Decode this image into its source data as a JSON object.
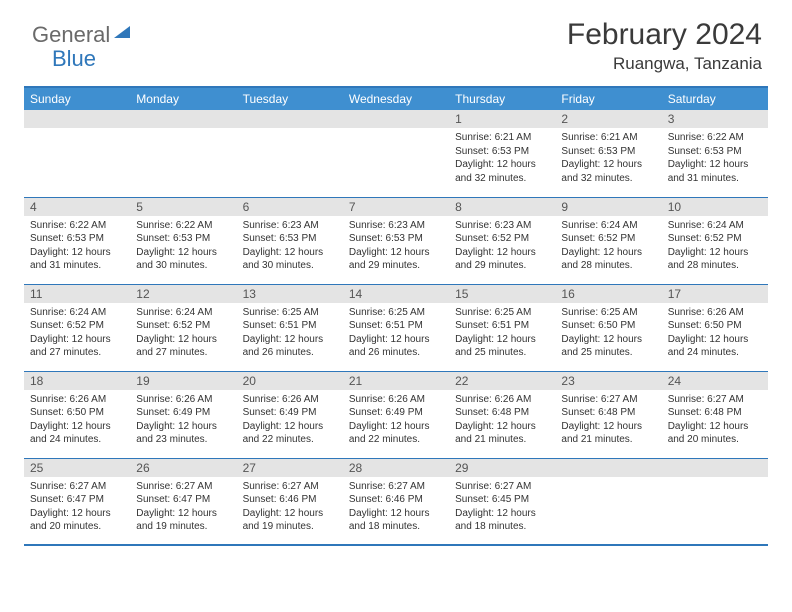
{
  "brand": {
    "part1": "General",
    "part2": "Blue"
  },
  "header": {
    "title": "February 2024",
    "location": "Ruangwa, Tanzania"
  },
  "style": {
    "accent": "#3f8fd0",
    "border": "#2f77ba",
    "daynum_bg": "#e4e4e4",
    "text": "#333333",
    "title_fontsize": 30,
    "location_fontsize": 17,
    "dayhead_fontsize": 12,
    "cell_fontsize": 10
  },
  "daynames": [
    "Sunday",
    "Monday",
    "Tuesday",
    "Wednesday",
    "Thursday",
    "Friday",
    "Saturday"
  ],
  "weeks": [
    [
      null,
      null,
      null,
      null,
      {
        "n": "1",
        "sunrise": "Sunrise: 6:21 AM",
        "sunset": "Sunset: 6:53 PM",
        "d1": "Daylight: 12 hours",
        "d2": "and 32 minutes."
      },
      {
        "n": "2",
        "sunrise": "Sunrise: 6:21 AM",
        "sunset": "Sunset: 6:53 PM",
        "d1": "Daylight: 12 hours",
        "d2": "and 32 minutes."
      },
      {
        "n": "3",
        "sunrise": "Sunrise: 6:22 AM",
        "sunset": "Sunset: 6:53 PM",
        "d1": "Daylight: 12 hours",
        "d2": "and 31 minutes."
      }
    ],
    [
      {
        "n": "4",
        "sunrise": "Sunrise: 6:22 AM",
        "sunset": "Sunset: 6:53 PM",
        "d1": "Daylight: 12 hours",
        "d2": "and 31 minutes."
      },
      {
        "n": "5",
        "sunrise": "Sunrise: 6:22 AM",
        "sunset": "Sunset: 6:53 PM",
        "d1": "Daylight: 12 hours",
        "d2": "and 30 minutes."
      },
      {
        "n": "6",
        "sunrise": "Sunrise: 6:23 AM",
        "sunset": "Sunset: 6:53 PM",
        "d1": "Daylight: 12 hours",
        "d2": "and 30 minutes."
      },
      {
        "n": "7",
        "sunrise": "Sunrise: 6:23 AM",
        "sunset": "Sunset: 6:53 PM",
        "d1": "Daylight: 12 hours",
        "d2": "and 29 minutes."
      },
      {
        "n": "8",
        "sunrise": "Sunrise: 6:23 AM",
        "sunset": "Sunset: 6:52 PM",
        "d1": "Daylight: 12 hours",
        "d2": "and 29 minutes."
      },
      {
        "n": "9",
        "sunrise": "Sunrise: 6:24 AM",
        "sunset": "Sunset: 6:52 PM",
        "d1": "Daylight: 12 hours",
        "d2": "and 28 minutes."
      },
      {
        "n": "10",
        "sunrise": "Sunrise: 6:24 AM",
        "sunset": "Sunset: 6:52 PM",
        "d1": "Daylight: 12 hours",
        "d2": "and 28 minutes."
      }
    ],
    [
      {
        "n": "11",
        "sunrise": "Sunrise: 6:24 AM",
        "sunset": "Sunset: 6:52 PM",
        "d1": "Daylight: 12 hours",
        "d2": "and 27 minutes."
      },
      {
        "n": "12",
        "sunrise": "Sunrise: 6:24 AM",
        "sunset": "Sunset: 6:52 PM",
        "d1": "Daylight: 12 hours",
        "d2": "and 27 minutes."
      },
      {
        "n": "13",
        "sunrise": "Sunrise: 6:25 AM",
        "sunset": "Sunset: 6:51 PM",
        "d1": "Daylight: 12 hours",
        "d2": "and 26 minutes."
      },
      {
        "n": "14",
        "sunrise": "Sunrise: 6:25 AM",
        "sunset": "Sunset: 6:51 PM",
        "d1": "Daylight: 12 hours",
        "d2": "and 26 minutes."
      },
      {
        "n": "15",
        "sunrise": "Sunrise: 6:25 AM",
        "sunset": "Sunset: 6:51 PM",
        "d1": "Daylight: 12 hours",
        "d2": "and 25 minutes."
      },
      {
        "n": "16",
        "sunrise": "Sunrise: 6:25 AM",
        "sunset": "Sunset: 6:50 PM",
        "d1": "Daylight: 12 hours",
        "d2": "and 25 minutes."
      },
      {
        "n": "17",
        "sunrise": "Sunrise: 6:26 AM",
        "sunset": "Sunset: 6:50 PM",
        "d1": "Daylight: 12 hours",
        "d2": "and 24 minutes."
      }
    ],
    [
      {
        "n": "18",
        "sunrise": "Sunrise: 6:26 AM",
        "sunset": "Sunset: 6:50 PM",
        "d1": "Daylight: 12 hours",
        "d2": "and 24 minutes."
      },
      {
        "n": "19",
        "sunrise": "Sunrise: 6:26 AM",
        "sunset": "Sunset: 6:49 PM",
        "d1": "Daylight: 12 hours",
        "d2": "and 23 minutes."
      },
      {
        "n": "20",
        "sunrise": "Sunrise: 6:26 AM",
        "sunset": "Sunset: 6:49 PM",
        "d1": "Daylight: 12 hours",
        "d2": "and 22 minutes."
      },
      {
        "n": "21",
        "sunrise": "Sunrise: 6:26 AM",
        "sunset": "Sunset: 6:49 PM",
        "d1": "Daylight: 12 hours",
        "d2": "and 22 minutes."
      },
      {
        "n": "22",
        "sunrise": "Sunrise: 6:26 AM",
        "sunset": "Sunset: 6:48 PM",
        "d1": "Daylight: 12 hours",
        "d2": "and 21 minutes."
      },
      {
        "n": "23",
        "sunrise": "Sunrise: 6:27 AM",
        "sunset": "Sunset: 6:48 PM",
        "d1": "Daylight: 12 hours",
        "d2": "and 21 minutes."
      },
      {
        "n": "24",
        "sunrise": "Sunrise: 6:27 AM",
        "sunset": "Sunset: 6:48 PM",
        "d1": "Daylight: 12 hours",
        "d2": "and 20 minutes."
      }
    ],
    [
      {
        "n": "25",
        "sunrise": "Sunrise: 6:27 AM",
        "sunset": "Sunset: 6:47 PM",
        "d1": "Daylight: 12 hours",
        "d2": "and 20 minutes."
      },
      {
        "n": "26",
        "sunrise": "Sunrise: 6:27 AM",
        "sunset": "Sunset: 6:47 PM",
        "d1": "Daylight: 12 hours",
        "d2": "and 19 minutes."
      },
      {
        "n": "27",
        "sunrise": "Sunrise: 6:27 AM",
        "sunset": "Sunset: 6:46 PM",
        "d1": "Daylight: 12 hours",
        "d2": "and 19 minutes."
      },
      {
        "n": "28",
        "sunrise": "Sunrise: 6:27 AM",
        "sunset": "Sunset: 6:46 PM",
        "d1": "Daylight: 12 hours",
        "d2": "and 18 minutes."
      },
      {
        "n": "29",
        "sunrise": "Sunrise: 6:27 AM",
        "sunset": "Sunset: 6:45 PM",
        "d1": "Daylight: 12 hours",
        "d2": "and 18 minutes."
      },
      null,
      null
    ]
  ]
}
